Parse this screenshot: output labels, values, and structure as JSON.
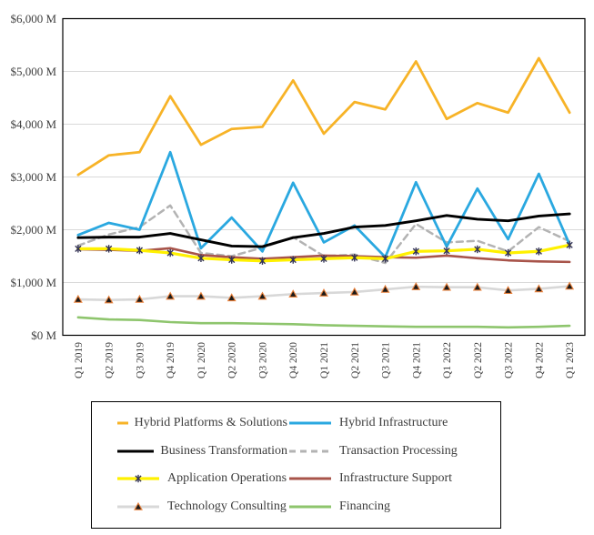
{
  "chart_data": {
    "type": "line",
    "title": "",
    "xlabel": "",
    "ylabel": "",
    "grid": true,
    "legend_position": "bottom",
    "x_categories": [
      "Q1 2019",
      "Q2 2019",
      "Q3 2019",
      "Q4 2019",
      "Q1 2020",
      "Q2 2020",
      "Q3 2020",
      "Q4 2020",
      "Q1 2021",
      "Q2 2021",
      "Q3 2021",
      "Q4 2021",
      "Q1 2022",
      "Q2 2022",
      "Q3 2022",
      "Q4 2022",
      "Q1 2023"
    ],
    "y_axis": {
      "min": 0,
      "max": 6000,
      "tick_step": 1000,
      "tick_labels": [
        "$0 M",
        "$1,000 M",
        "$2,000 M",
        "$3,000 M",
        "$4,000 M",
        "$5,000 M",
        "$6,000 M"
      ]
    },
    "series": [
      {
        "name": "Hybrid Platforms & Solutions",
        "color": "#F7B327",
        "style": "solid",
        "marker": "none",
        "line_width": 2.8,
        "values": [
          3040,
          3410,
          3470,
          4530,
          3610,
          3910,
          3950,
          4830,
          3820,
          4420,
          4280,
          5190,
          4100,
          4400,
          4220,
          5250,
          4220
        ]
      },
      {
        "name": "Hybrid Infrastructure",
        "color": "#2AA8E0",
        "style": "solid",
        "marker": "none",
        "line_width": 2.8,
        "values": [
          1900,
          2130,
          2000,
          3470,
          1650,
          2230,
          1590,
          2890,
          1760,
          2080,
          1480,
          2900,
          1680,
          2780,
          1820,
          3060,
          1720
        ]
      },
      {
        "name": "Business Transformation",
        "color": "#000000",
        "style": "solid",
        "marker": "none",
        "line_width": 2.9,
        "values": [
          1850,
          1860,
          1860,
          1930,
          1810,
          1690,
          1680,
          1850,
          1930,
          2050,
          2080,
          2170,
          2270,
          2200,
          2170,
          2260,
          2300
        ]
      },
      {
        "name": "Transaction Processing",
        "color": "#B3B3B3",
        "style": "dashed",
        "marker": "none",
        "line_width": 2.5,
        "values": [
          1700,
          1910,
          2050,
          2460,
          1560,
          1500,
          1660,
          1860,
          1500,
          1530,
          1370,
          2110,
          1760,
          1790,
          1590,
          2050,
          1780
        ]
      },
      {
        "name": "Application Operations",
        "color": "#FFF100",
        "style": "solid",
        "marker": "asterisk",
        "marker_color": "#333355",
        "line_width": 3.2,
        "values": [
          1640,
          1640,
          1610,
          1560,
          1460,
          1430,
          1410,
          1430,
          1450,
          1470,
          1450,
          1590,
          1600,
          1630,
          1560,
          1590,
          1710
        ]
      },
      {
        "name": "Infrastructure Support",
        "color": "#A8544A",
        "style": "solid",
        "marker": "none",
        "line_width": 2.6,
        "values": [
          1630,
          1620,
          1600,
          1650,
          1520,
          1480,
          1450,
          1480,
          1510,
          1500,
          1480,
          1470,
          1510,
          1460,
          1420,
          1400,
          1390
        ]
      },
      {
        "name": "Technology Consulting",
        "color": "#D8D8D8",
        "style": "solid",
        "marker": "triangle",
        "marker_color": "#1A1A1A",
        "marker_edge": "#E8803A",
        "line_width": 2.6,
        "values": [
          680,
          670,
          680,
          740,
          740,
          710,
          740,
          780,
          800,
          820,
          870,
          920,
          910,
          910,
          850,
          880,
          930
        ]
      },
      {
        "name": "Financing",
        "color": "#8EC56D",
        "style": "solid",
        "marker": "none",
        "line_width": 2.6,
        "values": [
          340,
          300,
          290,
          250,
          230,
          230,
          220,
          210,
          190,
          180,
          170,
          160,
          160,
          160,
          150,
          160,
          180
        ]
      }
    ]
  }
}
